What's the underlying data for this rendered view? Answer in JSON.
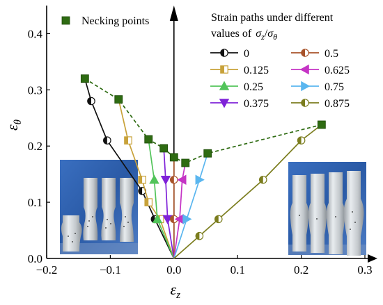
{
  "chart_data": {
    "type": "line",
    "title": "",
    "xlabel_base": "ε",
    "xlabel_sub": "z",
    "ylabel_base": "ε",
    "ylabel_sub": "θ",
    "xlim": [
      -0.2,
      0.3
    ],
    "ylim": [
      0.0,
      0.45
    ],
    "x_ticks": [
      "−0.2",
      "−0.1",
      "0.0",
      "0.1",
      "0.2",
      "0.3"
    ],
    "x_tick_values": [
      -0.2,
      -0.1,
      0.0,
      0.1,
      0.2,
      0.3
    ],
    "y_ticks": [
      "0.0",
      "0.1",
      "0.2",
      "0.3",
      "0.4"
    ],
    "y_tick_values": [
      0.0,
      0.1,
      0.2,
      0.3,
      0.4
    ],
    "legend_title_line1": "Strain paths under different",
    "legend_title_line2": "values of",
    "legend_title_ratio_num": "σ",
    "legend_title_ratio_num_sub": "z",
    "legend_title_ratio_den": "σ",
    "legend_title_ratio_den_sub": "θ",
    "necking": {
      "name": "Necking points",
      "color": "#2e6b12",
      "points": [
        [
          -0.14,
          0.32
        ],
        [
          -0.087,
          0.283
        ],
        [
          -0.04,
          0.212
        ],
        [
          -0.016,
          0.196
        ],
        [
          0.0,
          0.18
        ],
        [
          0.018,
          0.17
        ],
        [
          0.053,
          0.187
        ],
        [
          0.232,
          0.238
        ]
      ]
    },
    "series": [
      {
        "name": "0",
        "color": "#111111",
        "marker": "circle",
        "points": [
          [
            -0.14,
            0.32
          ],
          [
            -0.13,
            0.28
          ],
          [
            -0.105,
            0.21
          ],
          [
            -0.05,
            0.12
          ],
          [
            -0.03,
            0.07
          ],
          [
            0.0,
            0.0
          ]
        ]
      },
      {
        "name": "0.125",
        "color": "#c8a23a",
        "marker": "square",
        "points": [
          [
            -0.087,
            0.283
          ],
          [
            -0.072,
            0.21
          ],
          [
            -0.05,
            0.14
          ],
          [
            -0.04,
            0.1
          ],
          [
            -0.022,
            0.07
          ],
          [
            0.0,
            0.0
          ]
        ]
      },
      {
        "name": "0.25",
        "color": "#52c45a",
        "marker": "triangle-up",
        "points": [
          [
            -0.04,
            0.212
          ],
          [
            -0.031,
            0.14
          ],
          [
            -0.026,
            0.07
          ],
          [
            0.0,
            0.0
          ]
        ]
      },
      {
        "name": "0.375",
        "color": "#7f22d8",
        "marker": "triangle-down",
        "points": [
          [
            -0.016,
            0.196
          ],
          [
            -0.013,
            0.14
          ],
          [
            -0.01,
            0.07
          ],
          [
            0.0,
            0.0
          ]
        ]
      },
      {
        "name": "0.5",
        "color": "#a8532a",
        "marker": "circle",
        "points": [
          [
            0.0,
            0.18
          ],
          [
            0.0,
            0.14
          ],
          [
            0.0,
            0.07
          ],
          [
            0.0,
            0.0
          ]
        ]
      },
      {
        "name": "0.625",
        "color": "#c534c5",
        "marker": "triangle-left",
        "points": [
          [
            0.018,
            0.17
          ],
          [
            0.013,
            0.14
          ],
          [
            0.009,
            0.07
          ],
          [
            0.0,
            0.0
          ]
        ]
      },
      {
        "name": "0.75",
        "color": "#5ab6ef",
        "marker": "triangle-right",
        "points": [
          [
            0.053,
            0.187
          ],
          [
            0.04,
            0.14
          ],
          [
            0.02,
            0.07
          ],
          [
            0.0,
            0.0
          ]
        ]
      },
      {
        "name": "0.875",
        "color": "#7b7d1e",
        "marker": "circle",
        "points": [
          [
            0.232,
            0.238
          ],
          [
            0.2,
            0.21
          ],
          [
            0.14,
            0.14
          ],
          [
            0.07,
            0.07
          ],
          [
            0.04,
            0.04
          ],
          [
            0.0,
            0.0
          ]
        ]
      }
    ],
    "grid": false,
    "legend_position": "top-right"
  }
}
